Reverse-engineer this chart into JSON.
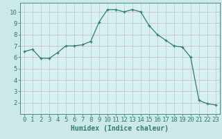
{
  "x": [
    0,
    1,
    2,
    3,
    4,
    5,
    6,
    7,
    8,
    9,
    10,
    11,
    12,
    13,
    14,
    15,
    16,
    17,
    18,
    19,
    20,
    21,
    22,
    23
  ],
  "y": [
    6.5,
    6.7,
    5.9,
    5.9,
    6.4,
    7.0,
    7.0,
    7.1,
    7.4,
    9.1,
    10.2,
    10.2,
    10.0,
    10.2,
    10.0,
    8.8,
    8.0,
    7.5,
    7.0,
    6.9,
    6.0,
    2.2,
    1.9,
    1.8
  ],
  "line_color": "#2e7d6e",
  "marker": "+",
  "marker_size": 3.5,
  "bg_color": "#cce8e8",
  "plot_bg_color": "#d9f0f0",
  "grid_color_h": "#c8b8b8",
  "grid_color_v": "#b8cccc",
  "xlabel": "Humidex (Indice chaleur)",
  "xlabel_fontsize": 7,
  "tick_fontsize": 6.5,
  "xlim": [
    -0.5,
    23.5
  ],
  "ylim": [
    1.0,
    10.8
  ],
  "yticks": [
    2,
    3,
    4,
    5,
    6,
    7,
    8,
    9,
    10
  ],
  "xticks": [
    0,
    1,
    2,
    3,
    4,
    5,
    6,
    7,
    8,
    9,
    10,
    11,
    12,
    13,
    14,
    15,
    16,
    17,
    18,
    19,
    20,
    21,
    22,
    23
  ]
}
